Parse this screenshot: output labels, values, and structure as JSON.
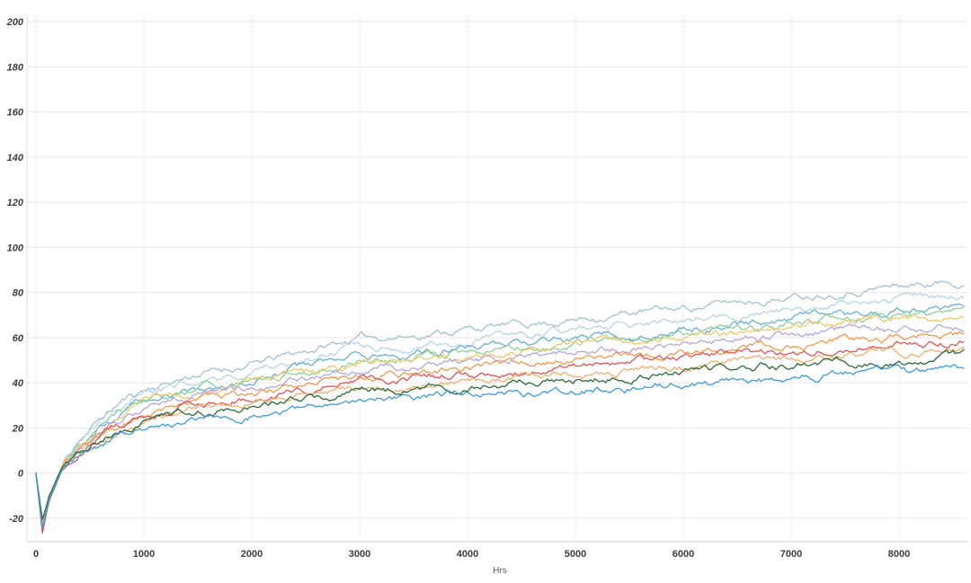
{
  "chart_data": {
    "type": "line",
    "title": "",
    "xlabel": "Hrs",
    "ylabel": "",
    "xlim": [
      0,
      8600
    ],
    "ylim": [
      -30,
      205
    ],
    "x_ticks": [
      0,
      1000,
      2000,
      3000,
      4000,
      5000,
      6000,
      7000,
      8000
    ],
    "y_ticks": [
      200,
      180,
      160,
      140,
      120,
      100,
      80,
      60,
      40,
      20,
      0,
      -20
    ],
    "grid": true,
    "legend_position": "none",
    "style": {
      "background": "#ffffff",
      "h_grid_color": "#e7e7e7",
      "v_grid_color": "#f1f1f1",
      "axis_color": "#cccccc",
      "tick_label_color": "#3d3d3d"
    },
    "x": [
      0,
      60,
      120,
      250,
      400,
      600,
      800,
      1000,
      1500,
      2000,
      2500,
      3000,
      3500,
      4000,
      4500,
      5000,
      5500,
      6000,
      6500,
      7000,
      7500,
      8000,
      8600
    ],
    "series": [
      {
        "name": "pale-steel-blue",
        "color": "#a3c2d1",
        "values": [
          0,
          -24,
          -12,
          4,
          15,
          24,
          32,
          37,
          44,
          48,
          54,
          60,
          61,
          64,
          66,
          68,
          71,
          73,
          76,
          78,
          81,
          83,
          85
        ]
      },
      {
        "name": "pale-blue",
        "color": "#b9d3e6",
        "values": [
          0,
          -23,
          -11,
          4,
          14,
          22,
          29,
          35,
          41,
          45,
          50,
          55,
          56,
          59,
          61,
          63,
          66,
          68,
          70,
          73,
          75,
          77,
          79
        ]
      },
      {
        "name": "medium-blue",
        "color": "#6aaed6",
        "values": [
          0,
          -22,
          -11,
          4,
          13,
          21,
          27,
          33,
          38,
          42,
          47,
          52,
          53,
          56,
          57,
          59,
          61,
          64,
          66,
          68,
          70,
          72,
          74
        ]
      },
      {
        "name": "light-green",
        "color": "#8fd096",
        "values": [
          0,
          -26,
          -13,
          4,
          13,
          20,
          27,
          32,
          37,
          41,
          45,
          50,
          51,
          54,
          55,
          58,
          60,
          62,
          64,
          66,
          68,
          70,
          72
        ]
      },
      {
        "name": "gold",
        "color": "#f2c96d",
        "values": [
          0,
          -23,
          -11,
          4,
          13,
          20,
          26,
          31,
          36,
          40,
          44,
          49,
          50,
          53,
          54,
          56,
          58,
          60,
          62,
          64,
          67,
          68,
          70
        ]
      },
      {
        "name": "lavender",
        "color": "#b6a6d9",
        "values": [
          0,
          -24,
          -12,
          3,
          12,
          18,
          24,
          29,
          34,
          38,
          42,
          46,
          47,
          50,
          51,
          53,
          55,
          57,
          59,
          61,
          63,
          64,
          66
        ]
      },
      {
        "name": "orange",
        "color": "#f5994e",
        "values": [
          0,
          -25,
          -12,
          3,
          11,
          17,
          23,
          27,
          32,
          35,
          39,
          43,
          44,
          47,
          48,
          50,
          52,
          53,
          55,
          57,
          59,
          60,
          62
        ]
      },
      {
        "name": "red",
        "color": "#e25555",
        "values": [
          0,
          -27,
          -13,
          3,
          11,
          17,
          22,
          26,
          31,
          34,
          37,
          41,
          42,
          44,
          45,
          47,
          49,
          51,
          53,
          54,
          56,
          57,
          59
        ]
      },
      {
        "name": "sandy-orange",
        "color": "#f0b070",
        "values": [
          0,
          -22,
          -11,
          3,
          10,
          15,
          20,
          24,
          29,
          31,
          35,
          39,
          39,
          41,
          42,
          44,
          46,
          47,
          49,
          51,
          52,
          53,
          55
        ]
      },
      {
        "name": "dark-green",
        "color": "#2e6b3a",
        "values": [
          0,
          -20,
          -10,
          3,
          9,
          15,
          19,
          23,
          27,
          30,
          33,
          36,
          37,
          39,
          40,
          42,
          43,
          45,
          46,
          48,
          49,
          50,
          52
        ]
      },
      {
        "name": "bright-blue",
        "color": "#3d9be0",
        "values": [
          0,
          -24,
          -12,
          2,
          8,
          13,
          17,
          20,
          24,
          26,
          29,
          32,
          33,
          35,
          35,
          37,
          38,
          40,
          41,
          42,
          44,
          45,
          46
        ]
      }
    ]
  }
}
